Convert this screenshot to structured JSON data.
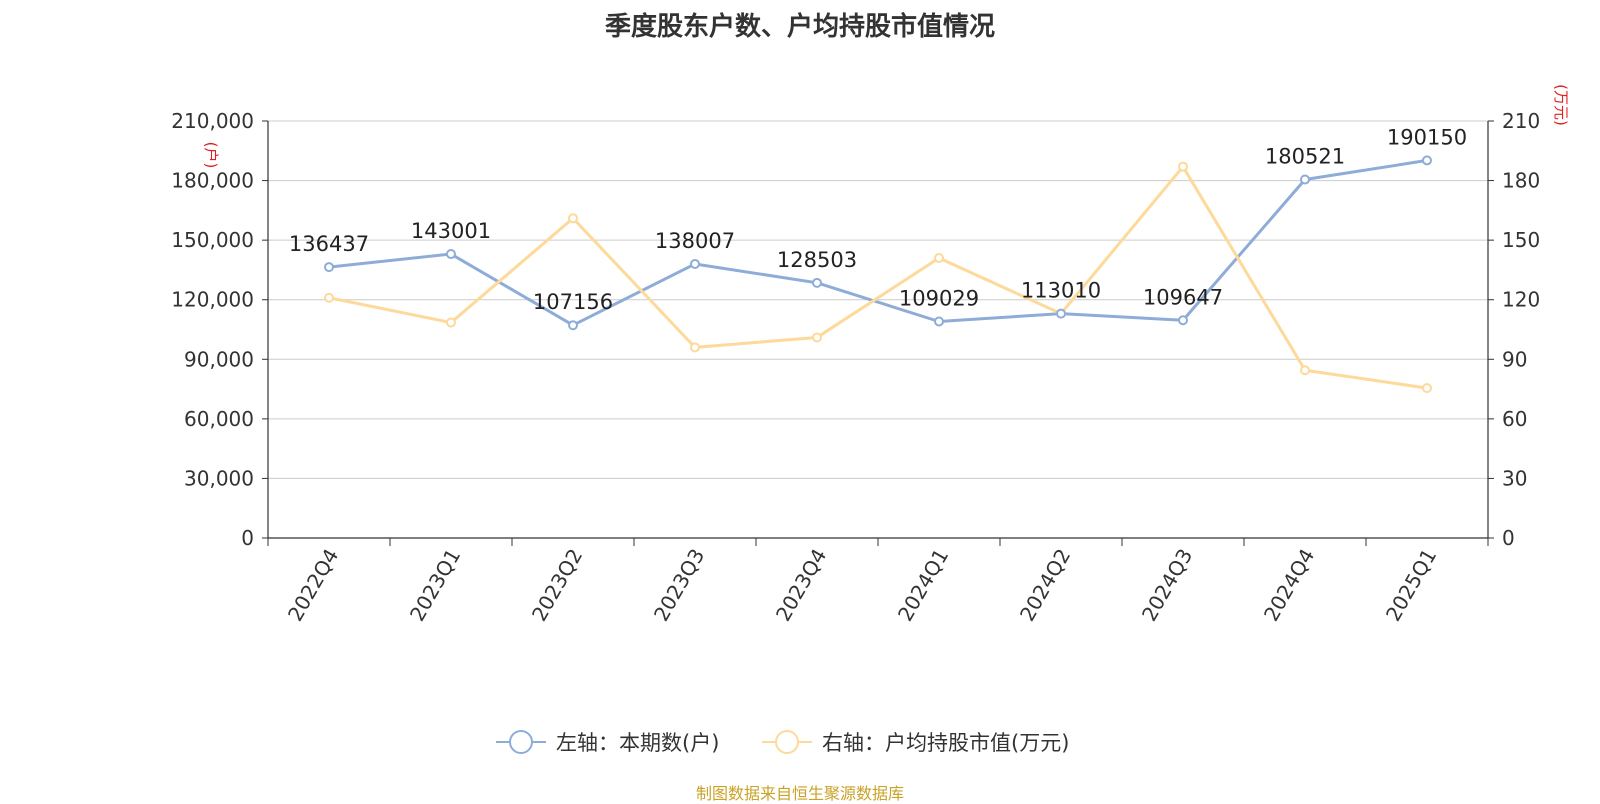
{
  "title": "季度股东户数、户均持股市值情况",
  "source": "制图数据来自恒生聚源数据库",
  "chart_data": {
    "type": "line",
    "categories": [
      "2022Q4",
      "2023Q1",
      "2023Q2",
      "2023Q3",
      "2023Q4",
      "2024Q1",
      "2024Q2",
      "2024Q3",
      "2024Q4",
      "2025Q1"
    ],
    "left_axis": {
      "unit": "(户)",
      "ylim": [
        0,
        210000
      ],
      "ticks": [
        "0",
        "30,000",
        "60,000",
        "90,000",
        "120,000",
        "150,000",
        "180,000",
        "210,000"
      ]
    },
    "right_axis": {
      "unit": "(万元)",
      "ylim": [
        0,
        210
      ],
      "ticks": [
        "0",
        "30",
        "60",
        "90",
        "120",
        "150",
        "180",
        "210"
      ]
    },
    "series": [
      {
        "name": "左轴：本期数(户)",
        "axis": "left",
        "color": "#8eacd8",
        "values": [
          136437,
          143001,
          107156,
          138007,
          128503,
          109029,
          113010,
          109647,
          180521,
          190150
        ],
        "labels": [
          "136437",
          "143001",
          "107156",
          "138007",
          "128503",
          "109029",
          "113010",
          "109647",
          "180521",
          "190150"
        ]
      },
      {
        "name": "右轴：户均持股市值(万元)",
        "axis": "right",
        "color": "#fdd99a",
        "values": [
          121,
          108.5,
          161,
          96,
          101,
          141,
          113,
          187,
          84.5,
          75.5
        ]
      }
    ],
    "grid": true,
    "legend_position": "bottom"
  }
}
